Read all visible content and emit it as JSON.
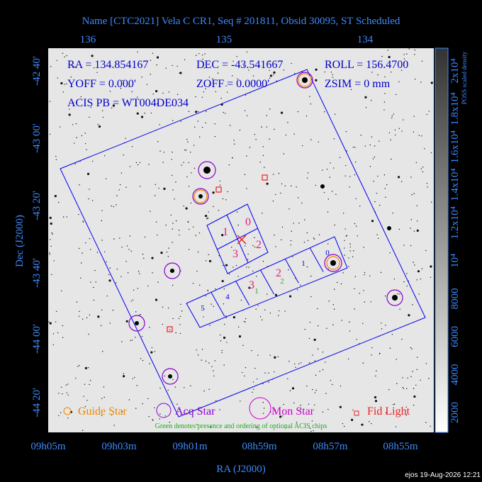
{
  "title": "Name [CTC2021] Vela C CR1, Seq # 201811, Obsid 30095, ST Scheduled",
  "top_axis_labels": [
    "136",
    "135",
    "134"
  ],
  "left_axis_labels": [
    "-42 40'",
    "-43 00'",
    "-43 20'",
    "-43 40'",
    "-44 00'",
    "-44 20'"
  ],
  "bottom_axis_labels": [
    "09h05m",
    "09h03m",
    "09h01m",
    "08h59m",
    "08h57m",
    "08h55m"
  ],
  "x_axis_title": "RA (J2000)",
  "y_axis_title": "Dec (J2000)",
  "info": {
    "ra": "RA = 134.854167",
    "dec": "DEC = -43.541667",
    "roll": "ROLL = 156.4700",
    "yoff": "YOFF =  0.000'",
    "zoff": "ZOFF =  0.0000'",
    "zsim": "ZSIM = 0 mm",
    "acis_pb": "ACIS PB = WT004DE034"
  },
  "acis_i_labels": [
    "0",
    "1",
    "2",
    "3"
  ],
  "acis_s_labels": [
    "0",
    "1",
    "2",
    "3",
    "4",
    "5"
  ],
  "optional_chip_labels": [
    "1",
    "2"
  ],
  "legend": [
    "Guide Star",
    "Acq Star",
    "Mon Star",
    "Fid Light"
  ],
  "note": "Green denotes presence and ordering of optional ACIS chips",
  "colorbar_title": "POSS scaled density",
  "colorbar_labels": [
    "2x10⁴",
    "1.8x10⁴",
    "1.6x10⁴",
    "1.4x10⁴",
    "1.2x10⁴",
    "10⁴",
    "8000",
    "6000",
    "4000",
    "2000"
  ],
  "footer": "ejos 19-Aug-2026 12:21"
}
